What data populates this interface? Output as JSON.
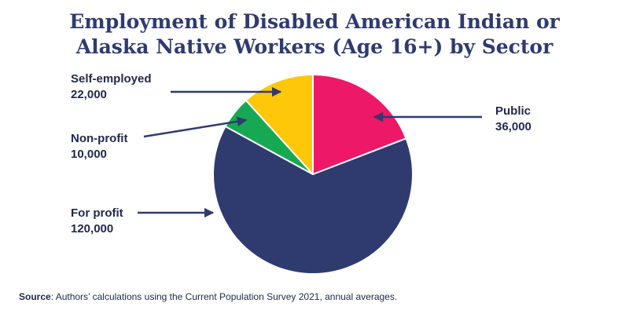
{
  "chart_data": {
    "type": "pie",
    "title_lines": [
      "Employment of Disabled American Indian or",
      "Alaska Native Workers (Age 16+) by Sector"
    ],
    "categories": [
      "Public",
      "For profit",
      "Non-profit",
      "Self-employed"
    ],
    "values": [
      36000,
      120000,
      10000,
      22000
    ],
    "value_labels": [
      "36,000",
      "120,000",
      "10,000",
      "22,000"
    ],
    "colors": [
      "#ed1868",
      "#2f3b6f",
      "#17a853",
      "#ffc709"
    ],
    "legend": "none"
  },
  "source": {
    "label": "Source",
    "text": ": Authors’ calculations using the Current Population Survey 2021, annual averages."
  }
}
